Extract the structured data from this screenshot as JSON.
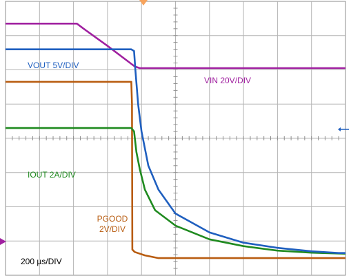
{
  "chart_data": {
    "type": "line",
    "grid": true,
    "x_divisions": 10,
    "y_divisions": 8,
    "time_scale_label": "200 µs/DIV",
    "x_unit": "div",
    "y_unit": "div",
    "xlim": [
      0,
      10
    ],
    "ylim": [
      0,
      8
    ],
    "series": [
      {
        "name": "VOUT 5V/DIV",
        "color": "#1f5fbf",
        "points": [
          [
            0,
            6.6
          ],
          [
            3.7,
            6.6
          ],
          [
            3.78,
            6.55
          ],
          [
            3.82,
            6.0
          ],
          [
            3.9,
            5.0
          ],
          [
            4.0,
            4.2
          ],
          [
            4.2,
            3.2
          ],
          [
            4.5,
            2.5
          ],
          [
            5.0,
            1.8
          ],
          [
            6.0,
            1.25
          ],
          [
            7.0,
            0.95
          ],
          [
            8.0,
            0.8
          ],
          [
            9.0,
            0.7
          ],
          [
            9.8,
            0.65
          ],
          [
            10,
            0.65
          ]
        ]
      },
      {
        "name": "VIN 20V/DIV",
        "color": "#a020a0",
        "points": [
          [
            0,
            7.35
          ],
          [
            2.1,
            7.35
          ],
          [
            2.3,
            7.2
          ],
          [
            3.0,
            6.7
          ],
          [
            3.8,
            6.1
          ],
          [
            3.95,
            6.05
          ],
          [
            10,
            6.05
          ]
        ]
      },
      {
        "name": "IOUT 2A/DIV",
        "color": "#1f8a1f",
        "points": [
          [
            0,
            4.3
          ],
          [
            3.7,
            4.3
          ],
          [
            3.78,
            4.2
          ],
          [
            3.85,
            3.6
          ],
          [
            3.95,
            3.1
          ],
          [
            4.1,
            2.5
          ],
          [
            4.4,
            1.9
          ],
          [
            5.0,
            1.45
          ],
          [
            6.0,
            1.05
          ],
          [
            7.0,
            0.85
          ],
          [
            8.0,
            0.72
          ],
          [
            9.0,
            0.66
          ],
          [
            10,
            0.63
          ]
        ]
      },
      {
        "name": "PGOOD 2V/DIV",
        "color": "#b85c10",
        "points": [
          [
            0,
            5.65
          ],
          [
            3.7,
            5.65
          ],
          [
            3.72,
            5.0
          ],
          [
            3.73,
            0.75
          ],
          [
            3.8,
            0.68
          ],
          [
            4.1,
            0.58
          ],
          [
            4.5,
            0.5
          ],
          [
            10,
            0.5
          ]
        ]
      }
    ],
    "series_labels": [
      {
        "text": "VOUT 5V/DIV",
        "color": "#1f5fbf"
      },
      {
        "text": "VIN 20V/DIV",
        "color": "#a020a0"
      },
      {
        "text": "IOUT 2A/DIV",
        "color": "#1f8a1f"
      },
      {
        "text_line1": "PGOOD",
        "text_line2": "2V/DIV",
        "color": "#b85c10"
      }
    ]
  }
}
